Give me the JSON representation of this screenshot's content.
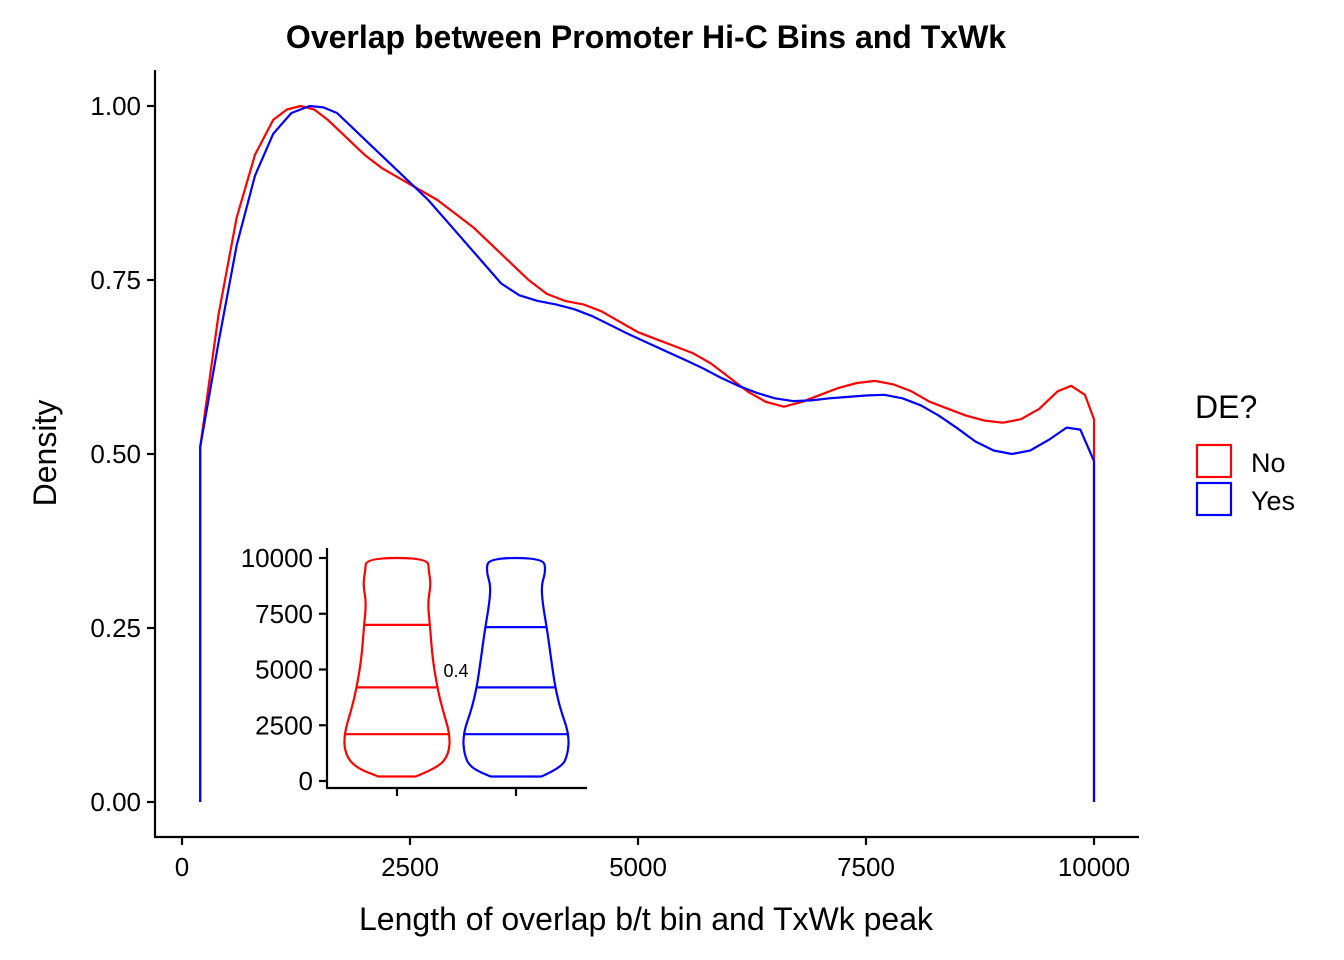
{
  "chart_data": [
    {
      "type": "density",
      "title": "Overlap between Promoter Hi-C Bins and TxWk",
      "xlabel": "Length of overlap b/t bin and TxWk peak",
      "ylabel": "Density",
      "xlim": [
        -500,
        10500
      ],
      "ylim": [
        -0.05,
        1.05
      ],
      "x_ticks": [
        0,
        2500,
        5000,
        7500,
        10000
      ],
      "y_ticks": [
        0.0,
        0.25,
        0.5,
        0.75,
        1.0
      ],
      "y_tick_labels": [
        "0.00",
        "0.25",
        "0.50",
        "0.75",
        "1.00"
      ],
      "x_tick_labels": [
        "0",
        "2500",
        "5000",
        "7500",
        "10000"
      ],
      "grid": false,
      "legend": {
        "title": "DE?",
        "position": "right",
        "entries": [
          {
            "label": "No",
            "color": "#ff0000"
          },
          {
            "label": "Yes",
            "color": "#0000ff"
          }
        ]
      },
      "series": [
        {
          "name": "No",
          "color": "#ff0000",
          "x": [
            200,
            400,
            600,
            800,
            1000,
            1150,
            1300,
            1450,
            1600,
            1800,
            2000,
            2200,
            2400,
            2600,
            2800,
            3000,
            3200,
            3400,
            3600,
            3800,
            4000,
            4200,
            4400,
            4600,
            4800,
            5000,
            5200,
            5400,
            5600,
            5800,
            6000,
            6200,
            6400,
            6600,
            6800,
            7000,
            7200,
            7400,
            7600,
            7800,
            8000,
            8200,
            8400,
            8600,
            8800,
            9000,
            9200,
            9400,
            9600,
            9750,
            9900,
            10000
          ],
          "y": [
            0.51,
            0.7,
            0.84,
            0.93,
            0.98,
            0.995,
            1.0,
            0.995,
            0.98,
            0.955,
            0.93,
            0.91,
            0.895,
            0.88,
            0.865,
            0.845,
            0.825,
            0.8,
            0.775,
            0.75,
            0.73,
            0.72,
            0.715,
            0.705,
            0.69,
            0.675,
            0.665,
            0.655,
            0.645,
            0.63,
            0.61,
            0.59,
            0.575,
            0.568,
            0.575,
            0.585,
            0.595,
            0.602,
            0.605,
            0.6,
            0.59,
            0.575,
            0.565,
            0.555,
            0.548,
            0.545,
            0.55,
            0.565,
            0.59,
            0.598,
            0.585,
            0.55
          ]
        },
        {
          "name": "Yes",
          "color": "#0000ff",
          "x": [
            200,
            400,
            600,
            800,
            1000,
            1200,
            1400,
            1550,
            1700,
            1900,
            2100,
            2300,
            2500,
            2700,
            2900,
            3100,
            3300,
            3500,
            3700,
            3900,
            4100,
            4300,
            4500,
            4700,
            4900,
            5100,
            5300,
            5500,
            5700,
            5900,
            6100,
            6300,
            6500,
            6700,
            6900,
            7100,
            7300,
            7500,
            7700,
            7900,
            8100,
            8300,
            8500,
            8700,
            8900,
            9100,
            9300,
            9500,
            9700,
            9850,
            10000
          ],
          "y": [
            0.51,
            0.66,
            0.8,
            0.9,
            0.96,
            0.99,
            1.0,
            0.998,
            0.99,
            0.965,
            0.94,
            0.915,
            0.89,
            0.865,
            0.835,
            0.805,
            0.775,
            0.745,
            0.728,
            0.72,
            0.715,
            0.708,
            0.698,
            0.685,
            0.672,
            0.66,
            0.648,
            0.636,
            0.624,
            0.61,
            0.598,
            0.588,
            0.58,
            0.576,
            0.577,
            0.58,
            0.582,
            0.584,
            0.585,
            0.58,
            0.57,
            0.555,
            0.537,
            0.518,
            0.505,
            0.5,
            0.505,
            0.52,
            0.538,
            0.535,
            0.49
          ]
        }
      ]
    },
    {
      "type": "violin",
      "ylim": [
        0,
        10000
      ],
      "y_ticks": [
        0,
        2500,
        5000,
        7500,
        10000
      ],
      "y_tick_labels": [
        "0",
        "2500",
        "5000",
        "7500",
        "10000"
      ],
      "categories": [
        "No",
        "Yes"
      ],
      "annotation": "0.4",
      "series": [
        {
          "name": "No",
          "color": "#ff0000",
          "quantiles": [
            2100,
            4200,
            7000
          ],
          "profile": [
            {
              "y": 200,
              "w": 0.35
            },
            {
              "y": 600,
              "w": 0.78
            },
            {
              "y": 1200,
              "w": 0.98
            },
            {
              "y": 2100,
              "w": 1.0
            },
            {
              "y": 3200,
              "w": 0.86
            },
            {
              "y": 4200,
              "w": 0.76
            },
            {
              "y": 5500,
              "w": 0.67
            },
            {
              "y": 7000,
              "w": 0.62
            },
            {
              "y": 8000,
              "w": 0.58
            },
            {
              "y": 8800,
              "w": 0.64
            },
            {
              "y": 9400,
              "w": 0.6
            },
            {
              "y": 10000,
              "w": 0.58
            }
          ]
        },
        {
          "name": "Yes",
          "color": "#0000ff",
          "quantiles": [
            2100,
            4200,
            6900
          ],
          "profile": [
            {
              "y": 200,
              "w": 0.48
            },
            {
              "y": 600,
              "w": 0.86
            },
            {
              "y": 1200,
              "w": 0.98
            },
            {
              "y": 2100,
              "w": 1.0
            },
            {
              "y": 3200,
              "w": 0.84
            },
            {
              "y": 4200,
              "w": 0.74
            },
            {
              "y": 5500,
              "w": 0.66
            },
            {
              "y": 6900,
              "w": 0.58
            },
            {
              "y": 8000,
              "w": 0.5
            },
            {
              "y": 8800,
              "w": 0.48
            },
            {
              "y": 9400,
              "w": 0.56
            },
            {
              "y": 10000,
              "w": 0.52
            }
          ]
        }
      ]
    }
  ]
}
